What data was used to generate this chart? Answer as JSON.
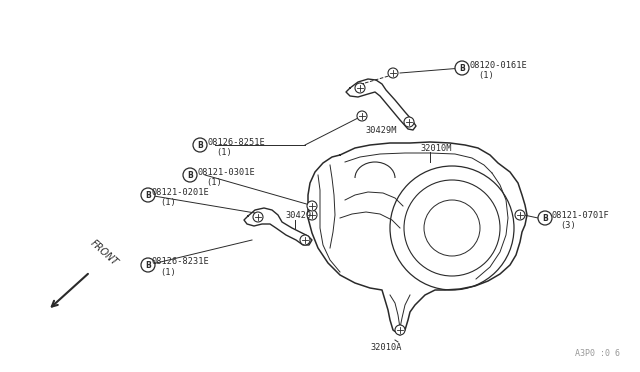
{
  "bg_color": "#ffffff",
  "line_color": "#2a2a2a",
  "text_color": "#2a2a2a",
  "fig_width": 6.4,
  "fig_height": 3.72,
  "dpi": 100,
  "watermark": "A3P0 :0 6",
  "label_fontsize": 6.2,
  "parts": [
    {
      "id": "08120-0161E",
      "qty": "(1)"
    },
    {
      "id": "30429M",
      "qty": ""
    },
    {
      "id": "08126-8251E",
      "qty": "(1)"
    },
    {
      "id": "08121-0301E",
      "qty": "(1)"
    },
    {
      "id": "32010M",
      "qty": ""
    },
    {
      "id": "08121-0201E",
      "qty": "(1)"
    },
    {
      "id": "30429",
      "qty": ""
    },
    {
      "id": "08126-8231E",
      "qty": "(1)"
    },
    {
      "id": "32010A",
      "qty": ""
    },
    {
      "id": "08121-0701F",
      "qty": "(3)"
    }
  ]
}
